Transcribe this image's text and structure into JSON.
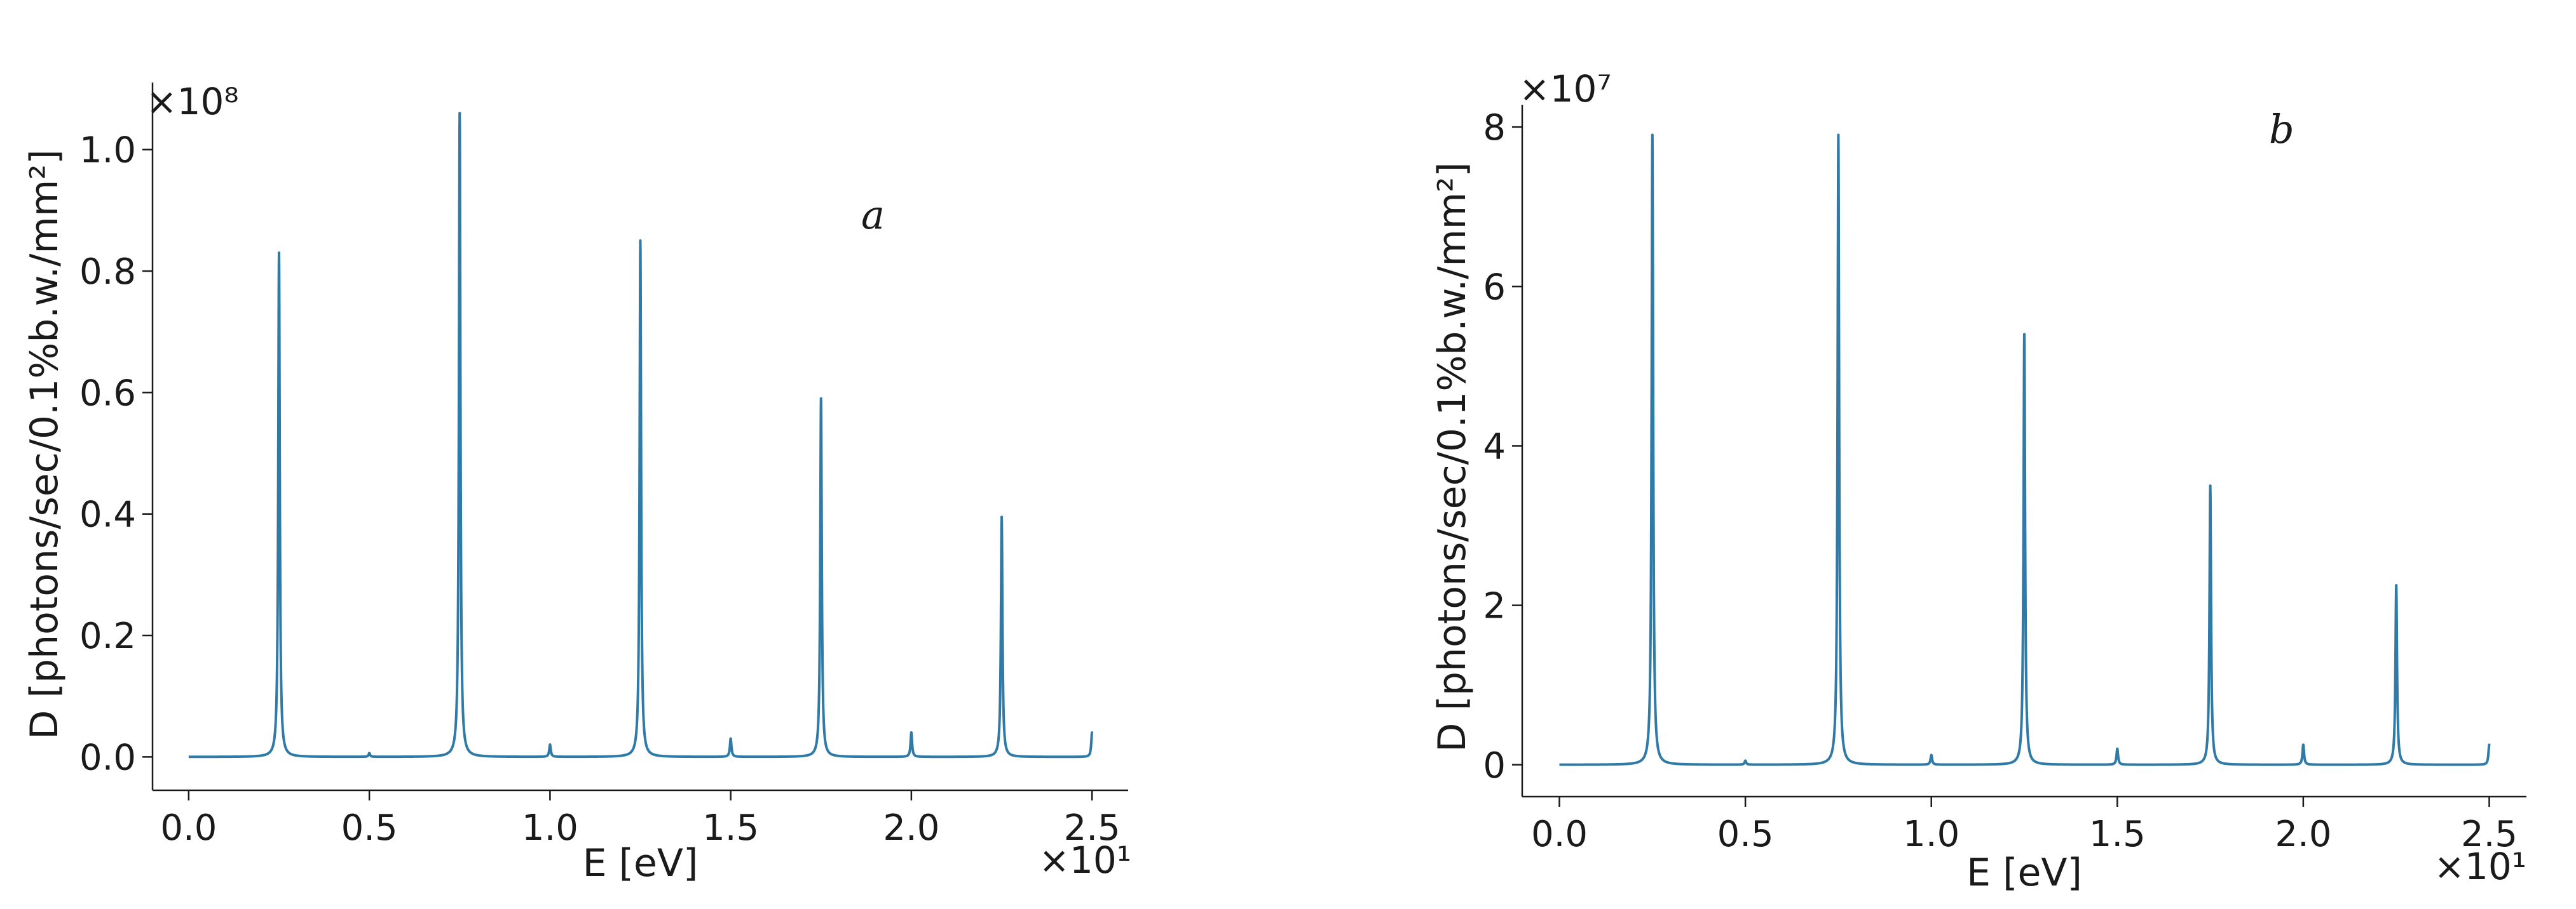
{
  "colors": {
    "series": "#2f7aa6",
    "axis": "#1a1a1a",
    "background": "#ffffff"
  },
  "chart_data": [
    {
      "type": "line",
      "panel_label": "a",
      "xlabel": "E [eV]",
      "ylabel": "D [photons/sec/0.1%b.w./mm²]",
      "x_multiplier": "×10¹",
      "y_multiplier": "×10⁸",
      "xlim": [
        -0.1,
        2.6
      ],
      "ylim": [
        -0.055,
        1.1
      ],
      "x_ticks": [
        0.0,
        0.5,
        1.0,
        1.5,
        2.0,
        2.5
      ],
      "x_tick_labels": [
        "0.0",
        "0.5",
        "1.0",
        "1.5",
        "2.0",
        "2.5"
      ],
      "y_ticks": [
        0.0,
        0.2,
        0.4,
        0.6,
        0.8,
        1.0
      ],
      "y_tick_labels": [
        "0.0",
        "0.2",
        "0.4",
        "0.6",
        "0.8",
        "1.0"
      ],
      "grid": false,
      "legend": "none",
      "series": [
        {
          "x_range": [
            0.0,
            2.5
          ],
          "peaks": [
            {
              "x": 0.25,
              "y": 0.83
            },
            {
              "x": 0.5,
              "y": 0.006
            },
            {
              "x": 0.75,
              "y": 1.06
            },
            {
              "x": 1.0,
              "y": 0.02
            },
            {
              "x": 1.25,
              "y": 0.85
            },
            {
              "x": 1.5,
              "y": 0.03
            },
            {
              "x": 1.75,
              "y": 0.59
            },
            {
              "x": 2.0,
              "y": 0.04
            },
            {
              "x": 2.25,
              "y": 0.395
            },
            {
              "x": 2.5,
              "y": 0.04
            }
          ]
        }
      ]
    },
    {
      "type": "line",
      "panel_label": "b",
      "xlabel": "E [eV]",
      "ylabel": "D [photons/sec/0.1%b.w./mm²]",
      "x_multiplier": "×10¹",
      "y_multiplier": "×10⁷",
      "xlim": [
        -0.1,
        2.6
      ],
      "ylim": [
        -0.4,
        8.2
      ],
      "x_ticks": [
        0.0,
        0.5,
        1.0,
        1.5,
        2.0,
        2.5
      ],
      "x_tick_labels": [
        "0.0",
        "0.5",
        "1.0",
        "1.5",
        "2.0",
        "2.5"
      ],
      "y_ticks": [
        0,
        2,
        4,
        6,
        8
      ],
      "y_tick_labels": [
        "0",
        "2",
        "4",
        "6",
        "8"
      ],
      "grid": false,
      "legend": "none",
      "series": [
        {
          "x_range": [
            0.0,
            2.5
          ],
          "peaks": [
            {
              "x": 0.25,
              "y": 7.9
            },
            {
              "x": 0.5,
              "y": 0.05
            },
            {
              "x": 0.75,
              "y": 7.9
            },
            {
              "x": 1.0,
              "y": 0.12
            },
            {
              "x": 1.25,
              "y": 5.4
            },
            {
              "x": 1.5,
              "y": 0.2
            },
            {
              "x": 1.75,
              "y": 3.5
            },
            {
              "x": 2.0,
              "y": 0.25
            },
            {
              "x": 2.25,
              "y": 2.25
            },
            {
              "x": 2.5,
              "y": 0.25
            }
          ]
        }
      ]
    }
  ]
}
